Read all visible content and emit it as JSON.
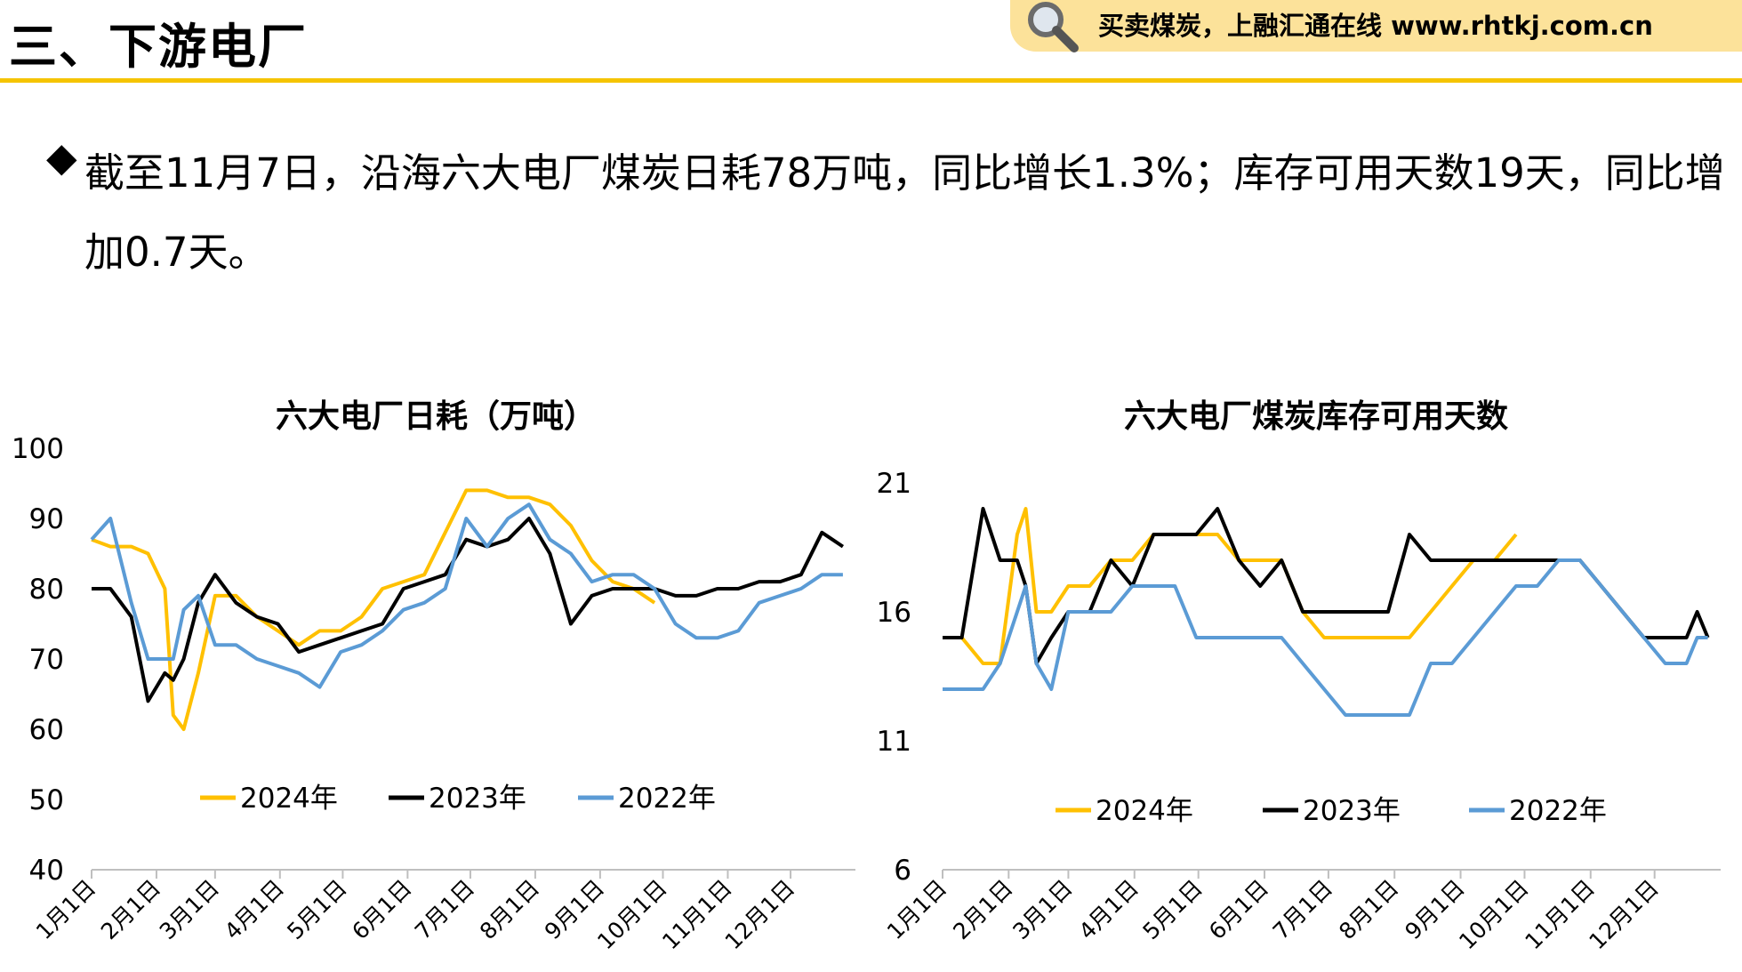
{
  "header": {
    "title": "三、下游电厂",
    "banner_text": "买卖煤炭，上融汇通在线 www.rhtkj.com.cn"
  },
  "summary": {
    "bullet": "◆",
    "text": "截至11月7日，沿海六大电厂煤炭日耗78万吨，同比增长1.3%；库存可用天数19天，同比增加0.7天。"
  },
  "colors": {
    "accent": "#f5c400",
    "banner": "#fce29a",
    "series_2024": "#ffc000",
    "series_2023": "#000000",
    "series_2022": "#5b9bd5"
  },
  "chart_data": [
    {
      "type": "line",
      "title": "六大电厂日耗（万吨）",
      "xlabel": "",
      "ylabel": "",
      "ylim": [
        40,
        100
      ],
      "yticks": [
        40,
        50,
        60,
        70,
        80,
        90,
        100
      ],
      "x_ticks": [
        "1月1日",
        "2月1日",
        "3月1日",
        "4月1日",
        "5月1日",
        "6月1日",
        "7月1日",
        "8月1日",
        "9月1日",
        "10月1日",
        "11月1日",
        "12月1日"
      ],
      "x": [
        1,
        10,
        20,
        28,
        36,
        40,
        45,
        52,
        60,
        70,
        80,
        90,
        100,
        110,
        120,
        130,
        140,
        150,
        160,
        170,
        180,
        190,
        200,
        210,
        220,
        230,
        240,
        250,
        260,
        270,
        280,
        290,
        300,
        310,
        320,
        330,
        340,
        350,
        355,
        360
      ],
      "legend_position": "bottom",
      "series": [
        {
          "name": "2024年",
          "color": "#ffc000",
          "values": [
            87,
            86,
            86,
            85,
            80,
            62,
            60,
            68,
            79,
            79,
            76,
            74,
            72,
            74,
            74,
            76,
            80,
            81,
            82,
            88,
            94,
            94,
            93,
            93,
            92,
            89,
            84,
            81,
            80,
            78,
            null,
            null,
            null,
            null,
            null,
            null,
            null,
            null,
            null,
            null
          ]
        },
        {
          "name": "2023年",
          "color": "#000000",
          "values": [
            80,
            80,
            76,
            64,
            68,
            67,
            70,
            78,
            82,
            78,
            76,
            75,
            71,
            72,
            73,
            74,
            75,
            80,
            81,
            82,
            87,
            86,
            87,
            90,
            85,
            75,
            79,
            80,
            80,
            80,
            79,
            79,
            80,
            80,
            81,
            81,
            82,
            88,
            87,
            86
          ]
        },
        {
          "name": "2022年",
          "color": "#5b9bd5",
          "values": [
            87,
            90,
            78,
            70,
            70,
            70,
            77,
            79,
            72,
            72,
            70,
            69,
            68,
            66,
            71,
            72,
            74,
            77,
            78,
            80,
            90,
            86,
            90,
            92,
            87,
            85,
            81,
            82,
            82,
            80,
            75,
            73,
            73,
            74,
            78,
            79,
            80,
            82,
            82,
            82
          ]
        }
      ]
    },
    {
      "type": "line",
      "title": "六大电厂煤炭库存可用天数",
      "xlabel": "",
      "ylabel": "",
      "ylim": [
        6,
        21
      ],
      "yticks": [
        6,
        11,
        16,
        21
      ],
      "x_ticks": [
        "1月1日",
        "2月1日",
        "3月1日",
        "4月1日",
        "5月1日",
        "6月1日",
        "7月1日",
        "8月1日",
        "9月1日",
        "10月1日",
        "11月1日",
        "12月1日"
      ],
      "x": [
        1,
        10,
        20,
        28,
        36,
        40,
        45,
        52,
        60,
        70,
        80,
        90,
        100,
        110,
        120,
        130,
        140,
        150,
        160,
        170,
        180,
        190,
        200,
        210,
        220,
        230,
        240,
        250,
        260,
        270,
        280,
        290,
        300,
        310,
        320,
        330,
        340,
        350,
        355,
        360
      ],
      "legend_position": "bottom",
      "series": [
        {
          "name": "2024年",
          "color": "#ffc000",
          "values": [
            15,
            15,
            14,
            14,
            19,
            20,
            16,
            16,
            17,
            17,
            18,
            18,
            19,
            19,
            19,
            19,
            18,
            18,
            18,
            16,
            15,
            15,
            15,
            15,
            15,
            16,
            17,
            18,
            18,
            19,
            null,
            null,
            null,
            null,
            null,
            null,
            null,
            null,
            null,
            null
          ]
        },
        {
          "name": "2023年",
          "color": "#000000",
          "values": [
            15,
            15,
            20,
            18,
            18,
            17,
            14,
            15,
            16,
            16,
            18,
            17,
            19,
            19,
            19,
            20,
            18,
            17,
            18,
            16,
            16,
            16,
            16,
            16,
            19,
            18,
            18,
            18,
            18,
            18,
            18,
            18,
            18,
            17,
            16,
            15,
            15,
            15,
            16,
            15
          ]
        },
        {
          "name": "2022年",
          "color": "#5b9bd5",
          "values": [
            13,
            13,
            13,
            14,
            16,
            17,
            14,
            13,
            16,
            16,
            16,
            17,
            17,
            17,
            15,
            15,
            15,
            15,
            15,
            14,
            13,
            12,
            12,
            12,
            12,
            14,
            14,
            15,
            16,
            17,
            17,
            18,
            18,
            17,
            16,
            15,
            14,
            14,
            15,
            15
          ]
        }
      ]
    }
  ]
}
